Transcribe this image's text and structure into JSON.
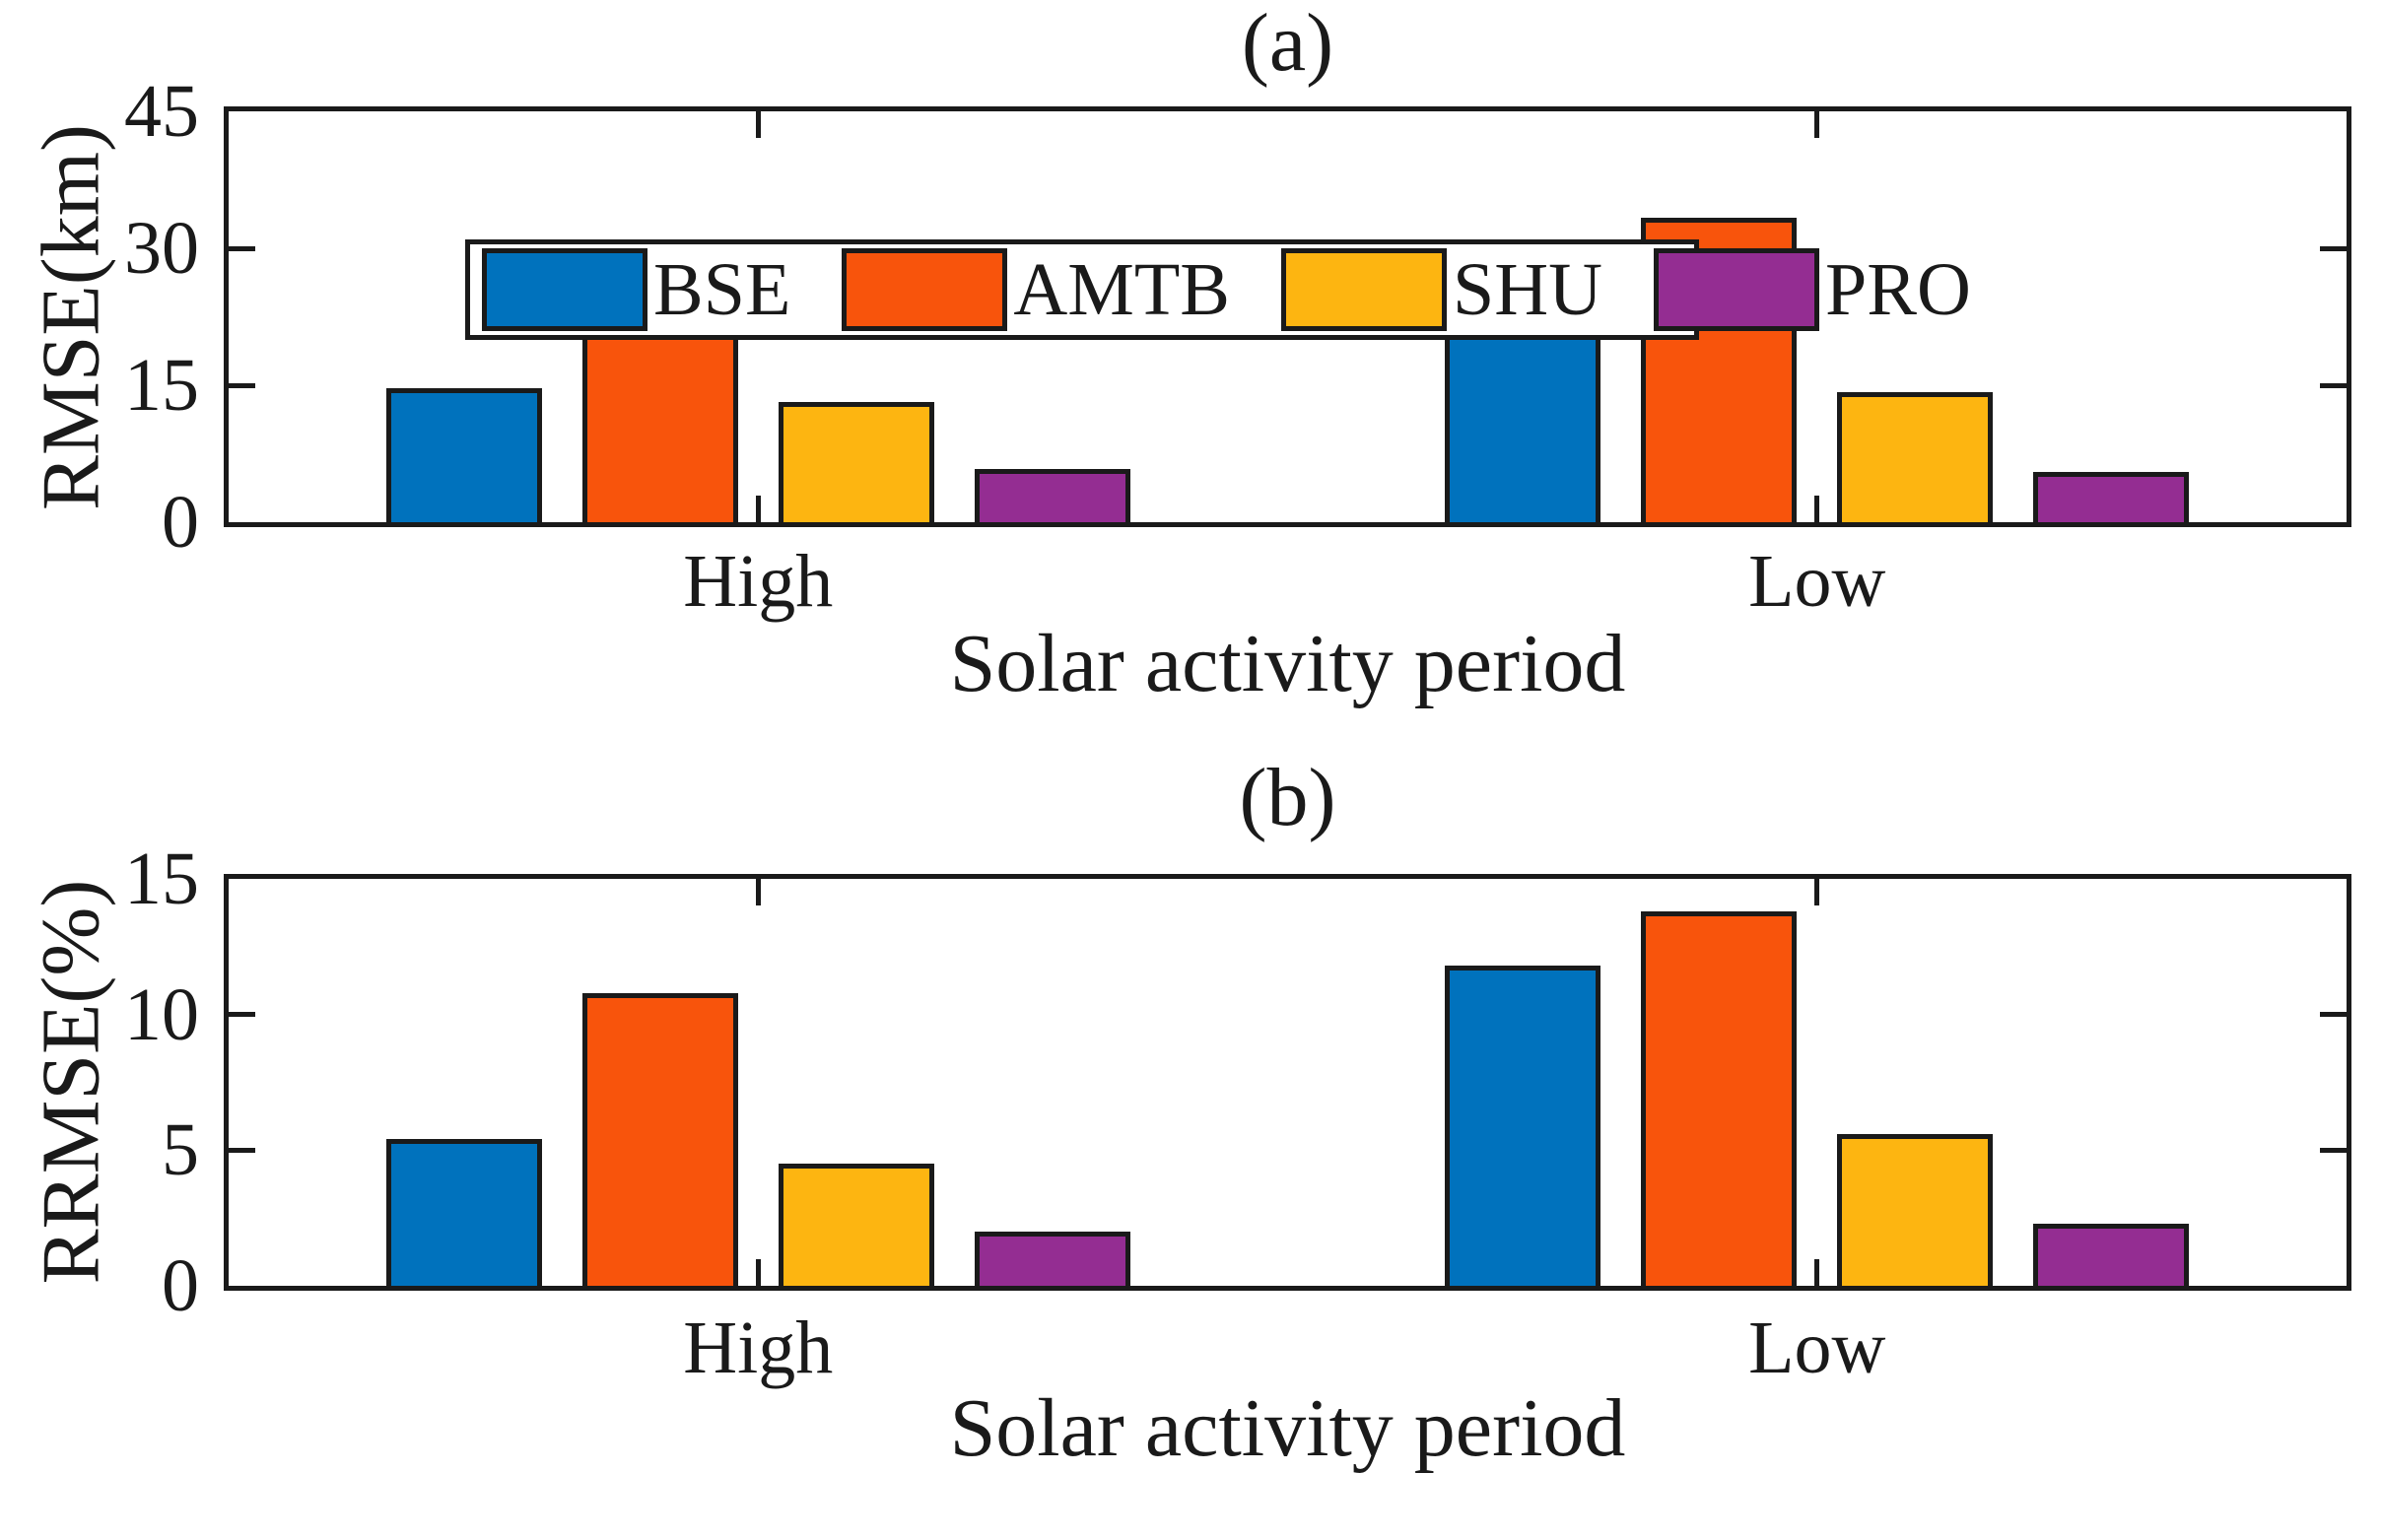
{
  "colors": {
    "axis": "#1a1a1a",
    "background": "#ffffff",
    "BSE": "#0072BD",
    "AMTB": "#F8540C",
    "SHU": "#FDB511",
    "PRO": "#942D92"
  },
  "legend": {
    "entries": [
      "BSE",
      "AMTB",
      "SHU",
      "PRO"
    ],
    "position": "top-left-inside"
  },
  "chart_data": [
    {
      "type": "bar",
      "title": "(a)",
      "ylabel": "RMSE(km)",
      "xlabel": "Solar activity period",
      "categories": [
        "High",
        "Low"
      ],
      "ylim": [
        0,
        45
      ],
      "yticks": [
        0,
        15,
        30,
        45
      ],
      "grid": false,
      "legend_position": "top-left-inside",
      "series": [
        {
          "name": "BSE",
          "color": "#0072BD",
          "values": [
            14.7,
            27.9
          ]
        },
        {
          "name": "AMTB",
          "color": "#F8540C",
          "values": [
            30.3,
            33.3
          ]
        },
        {
          "name": "SHU",
          "color": "#FDB511",
          "values": [
            13.2,
            14.2
          ]
        },
        {
          "name": "PRO",
          "color": "#942D92",
          "values": [
            5.8,
            5.5
          ]
        }
      ]
    },
    {
      "type": "bar",
      "title": "(b)",
      "ylabel": "RRMSE(%)",
      "xlabel": "Solar activity period",
      "categories": [
        "High",
        "Low"
      ],
      "ylim": [
        0,
        15
      ],
      "yticks": [
        0,
        5,
        10,
        15
      ],
      "grid": false,
      "series": [
        {
          "name": "BSE",
          "color": "#0072BD",
          "values": [
            5.4,
            11.8
          ]
        },
        {
          "name": "AMTB",
          "color": "#F8540C",
          "values": [
            10.8,
            13.8
          ]
        },
        {
          "name": "SHU",
          "color": "#FDB511",
          "values": [
            4.5,
            5.6
          ]
        },
        {
          "name": "PRO",
          "color": "#942D92",
          "values": [
            2.0,
            2.3
          ]
        }
      ]
    }
  ]
}
